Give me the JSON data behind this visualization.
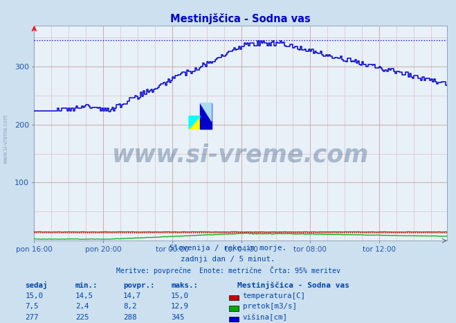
{
  "title": "Mestinjščica - Sodna vas",
  "bg_color": "#cce0f0",
  "plot_bg_color": "#e8f0f8",
  "title_color": "#0000cc",
  "axis_color": "#2255aa",
  "text_color": "#0044aa",
  "ylim": [
    0,
    370
  ],
  "time_labels": [
    "pon 16:00",
    "pon 20:00",
    "tor 00:00",
    "tor 04:00",
    "tor 08:00",
    "tor 12:00"
  ],
  "n_points": 288,
  "visina_color": "#0000cc",
  "temperatura_color": "#cc0000",
  "pretok_color": "#00aa00",
  "footnote1": "Slovenija / reke in morje.",
  "footnote2": "zadnji dan / 5 minut.",
  "footnote3": "Meritve: povprečne  Enote: metrične  Črta: 95% meritev",
  "watermark": "www.si-vreme.com",
  "legend_title": "Mestinjščica - Sodna vas",
  "visina_max": 345,
  "visina_min": 225,
  "temperatura_max": 15.0,
  "pretok_max": 12.9,
  "col_headers": [
    "sedaj",
    "min.:",
    "povpr.:",
    "maks.:"
  ],
  "row1_vals": [
    "15,0",
    "14,5",
    "14,7",
    "15,0"
  ],
  "row2_vals": [
    "7,5",
    "2,4",
    "8,2",
    "12,9"
  ],
  "row3_vals": [
    "277",
    "225",
    "288",
    "345"
  ],
  "row1_name": "temperatura[C]",
  "row2_name": "pretok[m3/s]",
  "row3_name": "višina[cm]"
}
